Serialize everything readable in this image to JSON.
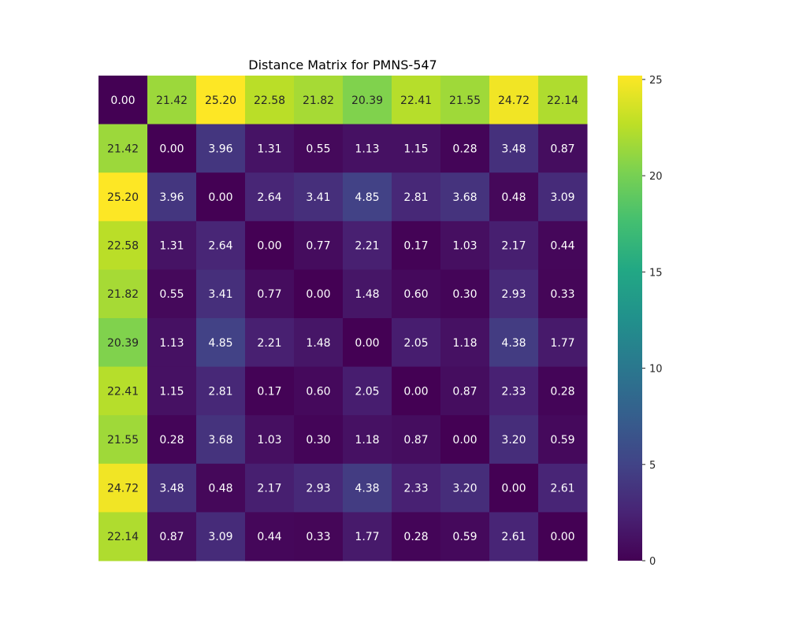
{
  "chart_data": {
    "type": "heatmap",
    "title": "Distance Matrix for PMNS-547",
    "xlabel": "",
    "ylabel": "",
    "colormap": "viridis",
    "value_format": "2 decimals",
    "color_range": [
      0,
      25.2
    ],
    "colorbar": {
      "ticks": [
        0,
        5,
        10,
        15,
        20,
        25
      ],
      "tick_labels": [
        "0",
        "5",
        "10",
        "15",
        "20",
        "25"
      ]
    },
    "matrix": [
      [
        0.0,
        21.42,
        25.2,
        22.58,
        21.82,
        20.39,
        22.41,
        21.55,
        24.72,
        22.14
      ],
      [
        21.42,
        0.0,
        3.96,
        1.31,
        0.55,
        1.13,
        1.15,
        0.28,
        3.48,
        0.87
      ],
      [
        25.2,
        3.96,
        0.0,
        2.64,
        3.41,
        4.85,
        2.81,
        3.68,
        0.48,
        3.09
      ],
      [
        22.58,
        1.31,
        2.64,
        0.0,
        0.77,
        2.21,
        0.17,
        1.03,
        2.17,
        0.44
      ],
      [
        21.82,
        0.55,
        3.41,
        0.77,
        0.0,
        1.48,
        0.6,
        0.3,
        2.93,
        0.33
      ],
      [
        20.39,
        1.13,
        4.85,
        2.21,
        1.48,
        0.0,
        2.05,
        1.18,
        4.38,
        1.77
      ],
      [
        22.41,
        1.15,
        2.81,
        0.17,
        0.6,
        2.05,
        0.0,
        0.87,
        2.33,
        0.28
      ],
      [
        21.55,
        0.28,
        3.68,
        1.03,
        0.3,
        1.18,
        0.87,
        0.0,
        3.2,
        0.59
      ],
      [
        24.72,
        3.48,
        0.48,
        2.17,
        2.93,
        4.38,
        2.33,
        3.2,
        0.0,
        2.61
      ],
      [
        22.14,
        0.87,
        3.09,
        0.44,
        0.33,
        1.77,
        0.28,
        0.59,
        2.61,
        0.0
      ]
    ]
  }
}
